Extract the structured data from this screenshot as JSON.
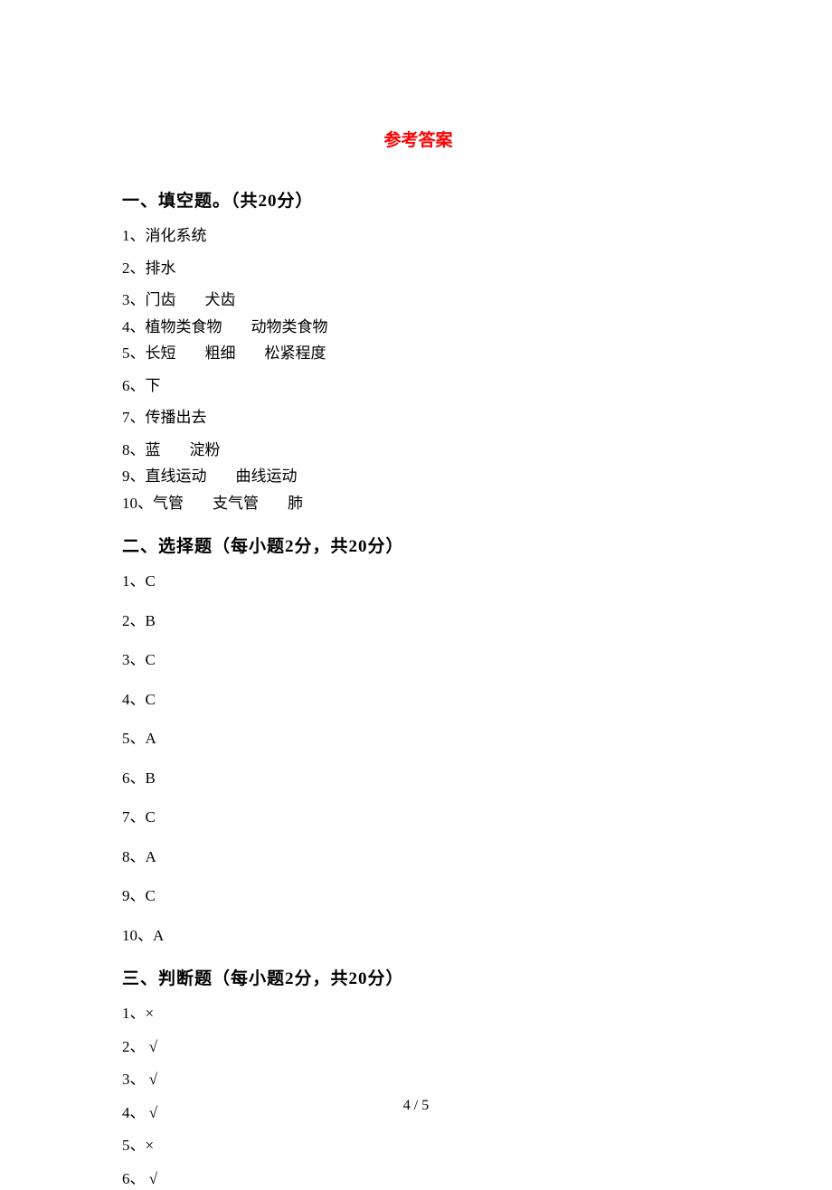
{
  "title": "参考答案",
  "section1": {
    "heading": "一、填空题。（共20分）",
    "items": [
      {
        "num": "1、",
        "text": "消化系统",
        "tight": false
      },
      {
        "num": "2、",
        "text": "排水",
        "tight": false
      },
      {
        "num": "3、",
        "text": "门齿     犬齿",
        "tight": true
      },
      {
        "num": "4、",
        "text": "植物类食物     动物类食物",
        "tight": true
      },
      {
        "num": "5、",
        "text": "长短     粗细     松紧程度",
        "tight": false
      },
      {
        "num": "6、",
        "text": "下",
        "tight": false
      },
      {
        "num": "7、",
        "text": "传播出去",
        "tight": false
      },
      {
        "num": "8、",
        "text": "蓝     淀粉",
        "tight": true
      },
      {
        "num": "9、",
        "text": "直线运动     曲线运动",
        "tight": true
      },
      {
        "num": "10、",
        "text": "气管     支气管     肺",
        "tight": false
      }
    ]
  },
  "section2": {
    "heading": "二、选择题（每小题2分，共20分）",
    "items": [
      {
        "num": "1、",
        "text": "C"
      },
      {
        "num": "2、",
        "text": "B"
      },
      {
        "num": "3、",
        "text": "C"
      },
      {
        "num": "4、",
        "text": "C"
      },
      {
        "num": "5、",
        "text": "A"
      },
      {
        "num": "6、",
        "text": "B"
      },
      {
        "num": "7、",
        "text": "C"
      },
      {
        "num": "8、",
        "text": "A"
      },
      {
        "num": "9、",
        "text": "C"
      },
      {
        "num": "10、",
        "text": "A"
      }
    ]
  },
  "section3": {
    "heading": "三、判断题（每小题2分，共20分）",
    "items": [
      {
        "num": "1、",
        "text": "×",
        "tight": false
      },
      {
        "num": "2、",
        "text": " √",
        "tight": true
      },
      {
        "num": "3、",
        "text": " √",
        "tight": false
      },
      {
        "num": "4、",
        "text": " √",
        "tight": false
      },
      {
        "num": "5、",
        "text": "×",
        "tight": false
      },
      {
        "num": "6、",
        "text": " √",
        "tight": false
      }
    ]
  },
  "pageNumber": "4 / 5"
}
